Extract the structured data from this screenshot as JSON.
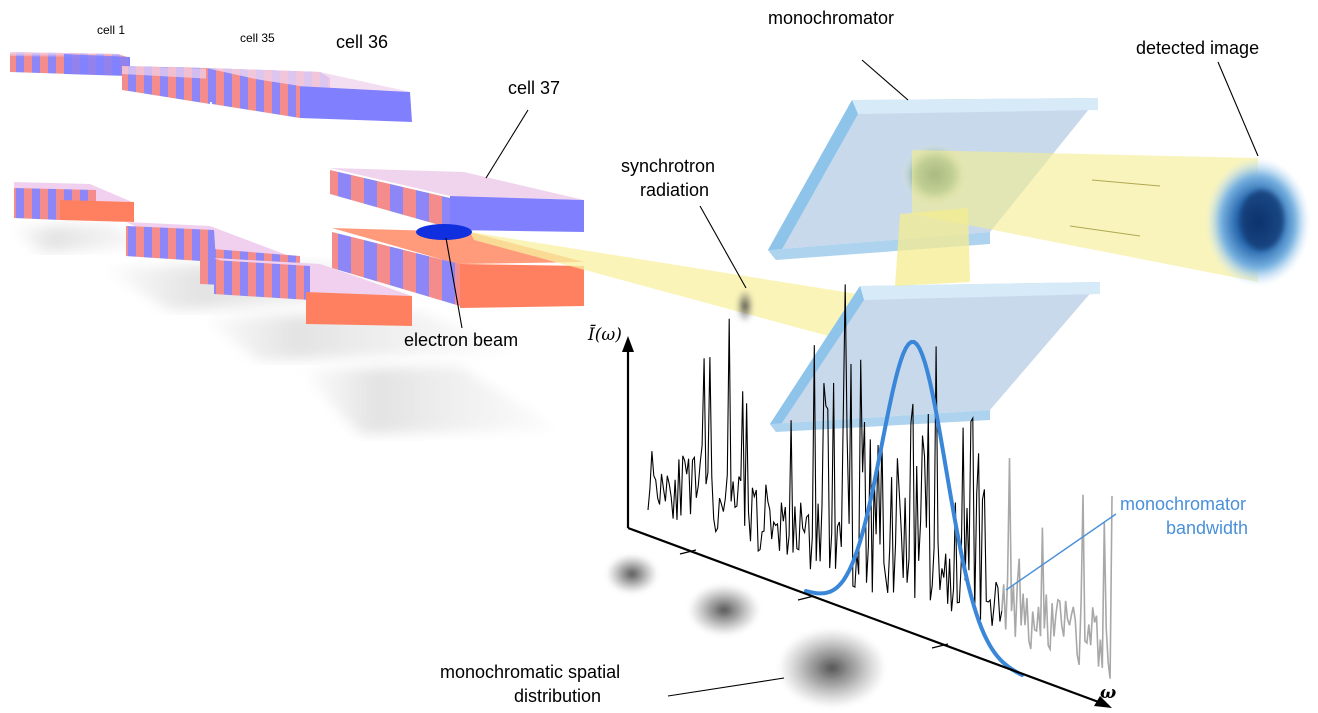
{
  "labels": {
    "cell1": "cell 1",
    "cell35": "cell 35",
    "cell36": "cell 36",
    "cell37": "cell 37",
    "electron_beam": "electron beam",
    "synchrotron_line1": "synchrotron",
    "synchrotron_line2": "radiation",
    "monochromator": "monochromator",
    "detected_image": "detected image",
    "bandwidth_line1": "monochromator",
    "bandwidth_line2": "bandwidth",
    "spatial_line1": "monochromatic spatial",
    "spatial_line2": "distribution",
    "y_axis": "Ī(ω)",
    "x_axis": "ω"
  },
  "colors": {
    "magnet_blue": "#8080ff",
    "magnet_salmon": "#ff8060",
    "monochromator_plate": "#b8d8f0",
    "radiation_beam": "#f8f0a0",
    "bandwidth_curve": "#3a86d8",
    "spectrum_line": "#000000",
    "spectrum_outside": "#a8a8a8",
    "electron_beam": "#1030e0"
  }
}
